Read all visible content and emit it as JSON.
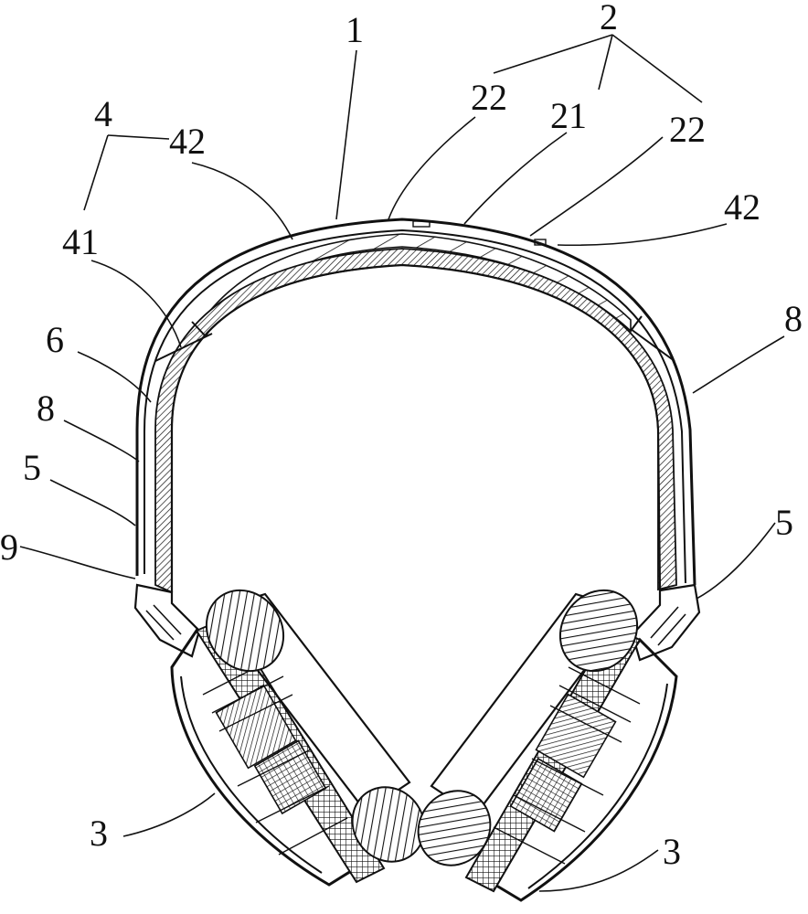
{
  "labels": {
    "l1": "1",
    "l2": "2",
    "l22a": "22",
    "l21": "21",
    "l22b": "22",
    "l4": "4",
    "l42a": "42",
    "l42b": "42",
    "l41": "41",
    "l6": "6",
    "l8a": "8",
    "l8b": "8",
    "l5a": "5",
    "l5b": "5",
    "l9": "9",
    "l3a": "3",
    "l3b": "3"
  }
}
